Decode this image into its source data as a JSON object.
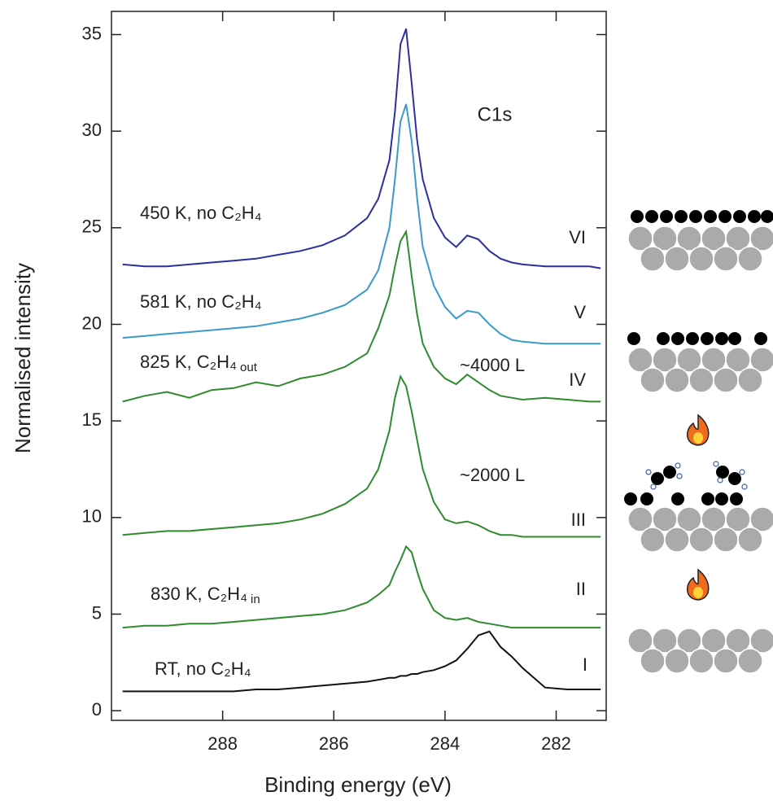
{
  "chart_data": {
    "type": "line",
    "title": "C1s",
    "x_label": "Binding energy (eV)",
    "y_label": "Normalised intensity",
    "xlim": [
      290,
      281.1
    ],
    "ylim": [
      -0.5,
      36.2
    ],
    "xticks": [
      288,
      286,
      284,
      282
    ],
    "yticks": [
      0,
      5,
      10,
      15,
      20,
      25,
      30,
      35
    ],
    "x": [
      289.8,
      289.4,
      289.0,
      288.6,
      288.2,
      287.8,
      287.4,
      287.0,
      286.6,
      286.2,
      285.8,
      285.4,
      285.2,
      285.0,
      284.9,
      284.8,
      284.7,
      284.6,
      284.5,
      284.4,
      284.2,
      284.0,
      283.8,
      283.6,
      283.4,
      283.2,
      283.0,
      282.8,
      282.6,
      282.2,
      281.8,
      281.4,
      281.2
    ],
    "series": [
      {
        "name": "VI",
        "label": "450 K, no C₂H₄",
        "color": "#2b2fa0",
        "values": [
          23.1,
          23.0,
          23.0,
          23.1,
          23.2,
          23.3,
          23.4,
          23.6,
          23.8,
          24.1,
          24.6,
          25.5,
          26.5,
          28.5,
          31,
          34.5,
          35.3,
          32.5,
          29.5,
          27.5,
          25.5,
          24.5,
          24.0,
          24.6,
          24.4,
          23.8,
          23.4,
          23.2,
          23.1,
          23.0,
          23.0,
          23.0,
          22.9
        ]
      },
      {
        "name": "V",
        "label": "581 K, no  C₂H₄",
        "color": "#3a9ac9",
        "values": [
          19.3,
          19.4,
          19.5,
          19.6,
          19.7,
          19.8,
          19.9,
          20.1,
          20.3,
          20.6,
          21.0,
          21.8,
          22.8,
          25.0,
          27.5,
          30.5,
          31.4,
          29.5,
          26.5,
          24.0,
          22.0,
          20.9,
          20.3,
          20.7,
          20.6,
          20.0,
          19.5,
          19.2,
          19.1,
          19.0,
          19.0,
          19.0,
          19.0
        ]
      },
      {
        "name": "IV",
        "label": "825 K,  C₂H₄",
        "label_sub": "out",
        "exposure": "~4000 L",
        "color": "#2e8b2e",
        "values": [
          16.0,
          16.3,
          16.5,
          16.2,
          16.6,
          16.7,
          17.0,
          16.8,
          17.2,
          17.4,
          17.8,
          18.5,
          19.8,
          21.5,
          23.0,
          24.3,
          24.8,
          22.5,
          20.5,
          19.0,
          17.8,
          17.2,
          16.9,
          17.4,
          17.0,
          16.6,
          16.3,
          16.2,
          16.1,
          16.2,
          16.1,
          16.0,
          16.0
        ]
      },
      {
        "name": "III",
        "exposure": "~2000 L",
        "color": "#2e8b2e",
        "values": [
          9.1,
          9.2,
          9.3,
          9.3,
          9.4,
          9.5,
          9.6,
          9.7,
          9.9,
          10.2,
          10.7,
          11.5,
          12.5,
          14.5,
          16.2,
          17.3,
          16.8,
          15.5,
          14.0,
          12.5,
          10.8,
          9.9,
          9.7,
          9.8,
          9.6,
          9.3,
          9.1,
          9.1,
          9.0,
          9.0,
          9.0,
          9.0,
          9.0
        ]
      },
      {
        "name": "II",
        "label": "830 K,  C₂H₄",
        "label_sub": "in",
        "color": "#2e8b2e",
        "values": [
          4.3,
          4.4,
          4.4,
          4.5,
          4.5,
          4.6,
          4.7,
          4.8,
          4.9,
          5.0,
          5.2,
          5.6,
          6.0,
          6.5,
          7.2,
          7.8,
          8.5,
          8.2,
          7.2,
          6.3,
          5.2,
          4.8,
          4.7,
          4.8,
          4.6,
          4.5,
          4.4,
          4.3,
          4.3,
          4.3,
          4.3,
          4.3,
          4.3
        ]
      },
      {
        "name": "I",
        "label": "RT, no C₂H₄",
        "color": "#111111",
        "values": [
          1.0,
          1.0,
          1.0,
          1.0,
          1.0,
          1.0,
          1.1,
          1.1,
          1.2,
          1.3,
          1.4,
          1.5,
          1.6,
          1.7,
          1.7,
          1.8,
          1.8,
          1.9,
          1.9,
          2.0,
          2.1,
          2.3,
          2.6,
          3.2,
          3.9,
          4.1,
          3.3,
          2.8,
          2.2,
          1.2,
          1.1,
          1.1,
          1.1
        ]
      }
    ]
  }
}
